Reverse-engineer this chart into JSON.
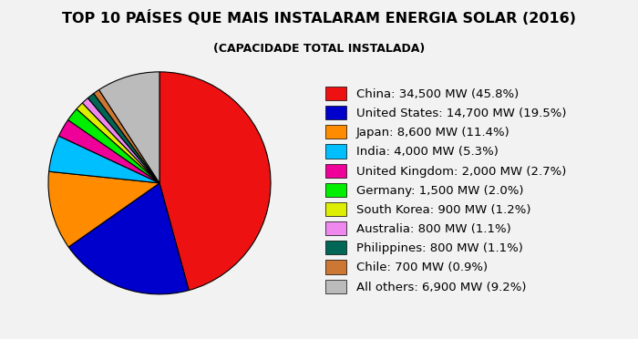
{
  "title": "TOP 10 PAÍSES QUE MAIS INSTALARAM ENERGIA SOLAR (2016)",
  "subtitle": "(CAPACIDADE TOTAL INSTALADA)",
  "labels": [
    "China: 34,500 MW (45.8%)",
    "United States: 14,700 MW (19.5%)",
    "Japan: 8,600 MW (11.4%)",
    "India: 4,000 MW (5.3%)",
    "United Kingdom: 2,000 MW (2.7%)",
    "Germany: 1,500 MW (2.0%)",
    "South Korea: 900 MW (1.2%)",
    "Australia: 800 MW (1.1%)",
    "Philippines: 800 MW (1.1%)",
    "Chile: 700 MW (0.9%)",
    "All others: 6,900 MW (9.2%)"
  ],
  "values": [
    34500,
    14700,
    8600,
    4000,
    2000,
    1500,
    900,
    800,
    800,
    700,
    6900
  ],
  "colors": [
    "#EE1111",
    "#0000CC",
    "#FF8C00",
    "#00BFFF",
    "#EE0099",
    "#00EE00",
    "#DDEE00",
    "#EE88EE",
    "#006655",
    "#CC7733",
    "#BBBBBB"
  ],
  "background_color": "#F2F2F2",
  "title_fontsize": 11.5,
  "subtitle_fontsize": 9,
  "legend_fontsize": 9.5
}
